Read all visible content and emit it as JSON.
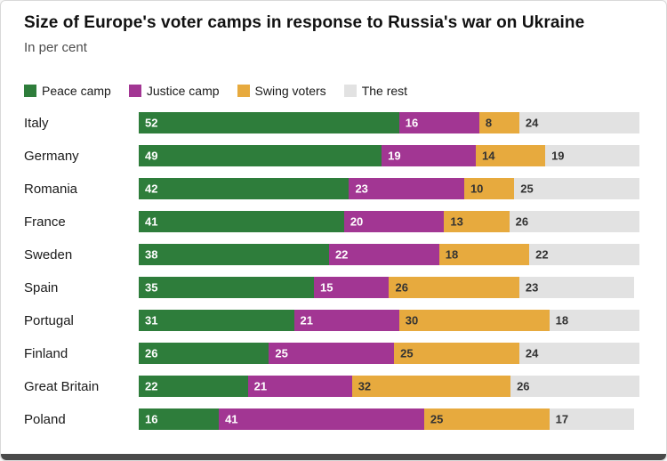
{
  "chart_data": {
    "type": "bar",
    "orientation": "horizontal",
    "stacked": true,
    "title": "Size of Europe's voter camps in response to Russia's war on Ukraine",
    "subtitle": "In per cent",
    "legend_position": "top",
    "xmax": 100,
    "grid": false,
    "categories": [
      "Italy",
      "Germany",
      "Romania",
      "France",
      "Sweden",
      "Spain",
      "Portugal",
      "Finland",
      "Great Britain",
      "Poland"
    ],
    "series": [
      {
        "name": "Peace camp",
        "color": "#2e7d3b",
        "value_label_color": "#ffffff",
        "values": [
          52,
          49,
          42,
          41,
          38,
          35,
          31,
          26,
          22,
          16
        ]
      },
      {
        "name": "Justice camp",
        "color": "#a23693",
        "value_label_color": "#ffffff",
        "values": [
          16,
          19,
          23,
          20,
          22,
          15,
          21,
          25,
          21,
          41
        ]
      },
      {
        "name": "Swing voters",
        "color": "#e7aa3e",
        "value_label_color": "#333333",
        "values": [
          8,
          14,
          10,
          13,
          18,
          26,
          30,
          25,
          32,
          25
        ]
      },
      {
        "name": "The rest",
        "color": "#e2e2e2",
        "value_label_color": "#333333",
        "values": [
          24,
          19,
          25,
          26,
          22,
          23,
          18,
          24,
          26,
          17
        ]
      }
    ]
  }
}
